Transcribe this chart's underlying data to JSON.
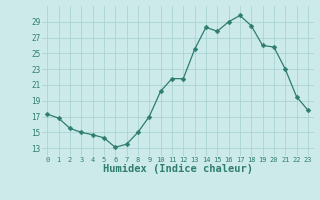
{
  "x": [
    0,
    1,
    2,
    3,
    4,
    5,
    6,
    7,
    8,
    9,
    10,
    11,
    12,
    13,
    14,
    15,
    16,
    17,
    18,
    19,
    20,
    21,
    22,
    23
  ],
  "y": [
    17.3,
    16.8,
    15.5,
    15.0,
    14.7,
    14.3,
    13.1,
    13.5,
    15.0,
    17.0,
    20.2,
    21.8,
    21.8,
    25.5,
    28.3,
    27.8,
    29.0,
    29.8,
    28.5,
    26.0,
    25.8,
    23.0,
    19.5,
    17.8
  ],
  "line_color": "#2e7d6e",
  "marker": "D",
  "marker_size": 2.5,
  "bg_color": "#cceaea",
  "grid_color": "#aad4d4",
  "xlabel": "Humidex (Indice chaleur)",
  "xlabel_fontsize": 7.5,
  "tick_color": "#2e7d6e",
  "ylim": [
    12,
    31
  ],
  "xlim": [
    -0.5,
    23.5
  ],
  "yticks": [
    13,
    15,
    17,
    19,
    21,
    23,
    25,
    27,
    29
  ],
  "xticks": [
    0,
    1,
    2,
    3,
    4,
    5,
    6,
    7,
    8,
    9,
    10,
    11,
    12,
    13,
    14,
    15,
    16,
    17,
    18,
    19,
    20,
    21,
    22,
    23
  ],
  "xtick_labels": [
    "0",
    "1",
    "2",
    "3",
    "4",
    "5",
    "6",
    "7",
    "8",
    "9",
    "10",
    "11",
    "12",
    "13",
    "14",
    "15",
    "16",
    "17",
    "18",
    "19",
    "20",
    "21",
    "22",
    "23"
  ]
}
